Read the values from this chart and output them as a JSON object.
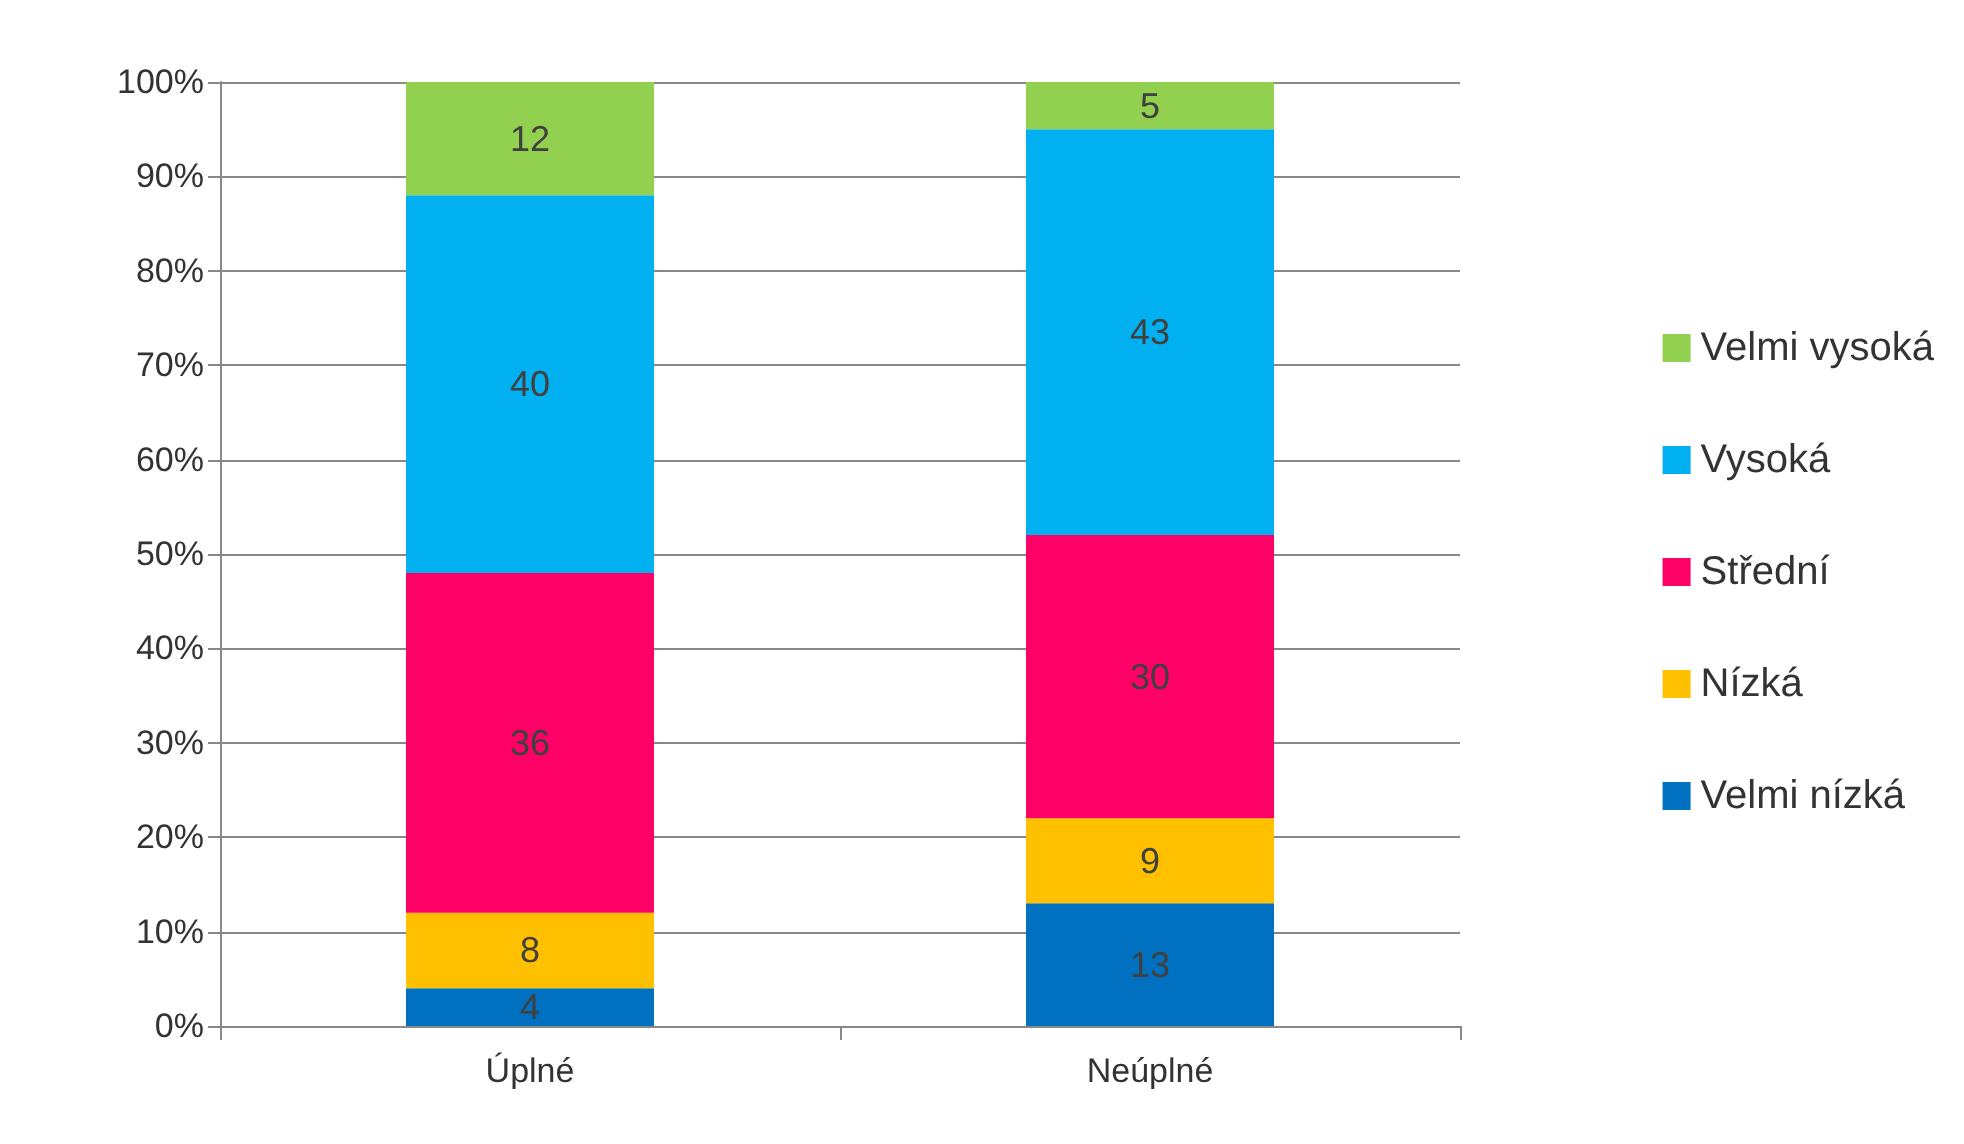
{
  "chart_data": {
    "type": "bar",
    "stacked": true,
    "categories": [
      "Úplné",
      "Neúplné"
    ],
    "series": [
      {
        "name": "Velmi nízká",
        "color": "#0070c0",
        "values": [
          4,
          13
        ]
      },
      {
        "name": "Nízká",
        "color": "#ffc000",
        "values": [
          8,
          9
        ]
      },
      {
        "name": "Střední",
        "color": "#ff0066",
        "values": [
          36,
          30
        ]
      },
      {
        "name": "Vysoká",
        "color": "#00b0f0",
        "values": [
          40,
          43
        ]
      },
      {
        "name": "Velmi vysoká",
        "color": "#92d050",
        "values": [
          12,
          5
        ]
      }
    ],
    "ylim": [
      0,
      100
    ],
    "yticks": [
      {
        "value": 0,
        "label": "0%"
      },
      {
        "value": 10,
        "label": "10%"
      },
      {
        "value": 20,
        "label": "20%"
      },
      {
        "value": 30,
        "label": "30%"
      },
      {
        "value": 40,
        "label": "40%"
      },
      {
        "value": 50,
        "label": "50%"
      },
      {
        "value": 60,
        "label": "60%"
      },
      {
        "value": 70,
        "label": "70%"
      },
      {
        "value": 80,
        "label": "80%"
      },
      {
        "value": 90,
        "label": "90%"
      },
      {
        "value": 100,
        "label": "100%"
      }
    ],
    "grid": "y",
    "legend": "right",
    "data_labels": true
  }
}
